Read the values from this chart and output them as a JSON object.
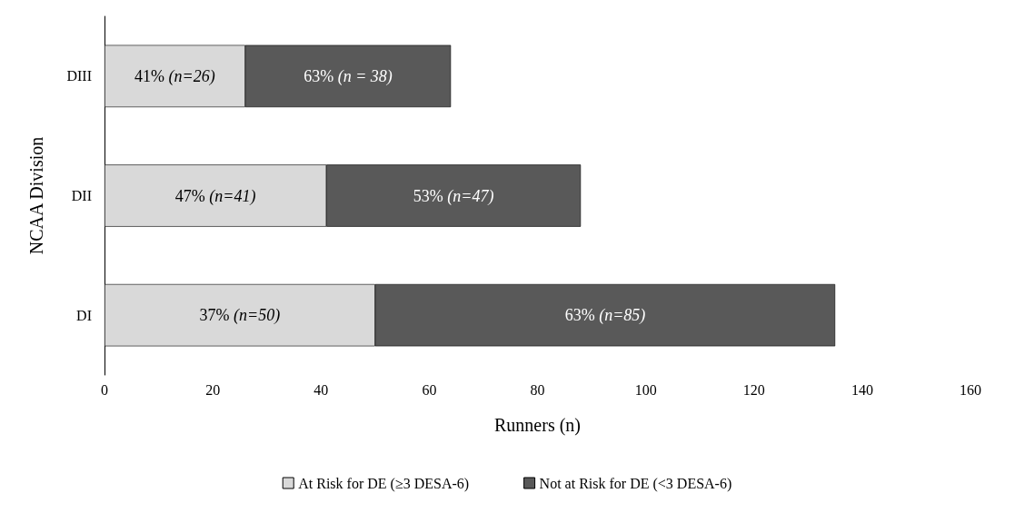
{
  "chart_data": {
    "type": "bar",
    "orientation": "horizontal",
    "stacked": true,
    "xlabel": "Runners (n)",
    "ylabel": "NCAA Division",
    "categories": [
      "DIII",
      "DII",
      "DI"
    ],
    "series": [
      {
        "name": "At Risk for DE (≥3 DESA-6)",
        "color": "#d9d9d9",
        "values": [
          26,
          41,
          50
        ],
        "value_labels": [
          "41% (n=26)",
          "47% (n=41)",
          "37% (n=50)"
        ]
      },
      {
        "name": "Not at Risk for DE (<3 DESA-6)",
        "color": "#595959",
        "values": [
          38,
          47,
          85
        ],
        "value_labels": [
          "63% (n = 38)",
          "53% (n=47)",
          "63% (n=85)"
        ]
      }
    ],
    "xlim": [
      0,
      160
    ],
    "xticks": [
      0,
      20,
      40,
      60,
      80,
      100,
      120,
      140,
      160
    ],
    "grid": false,
    "legend": "bottom"
  }
}
